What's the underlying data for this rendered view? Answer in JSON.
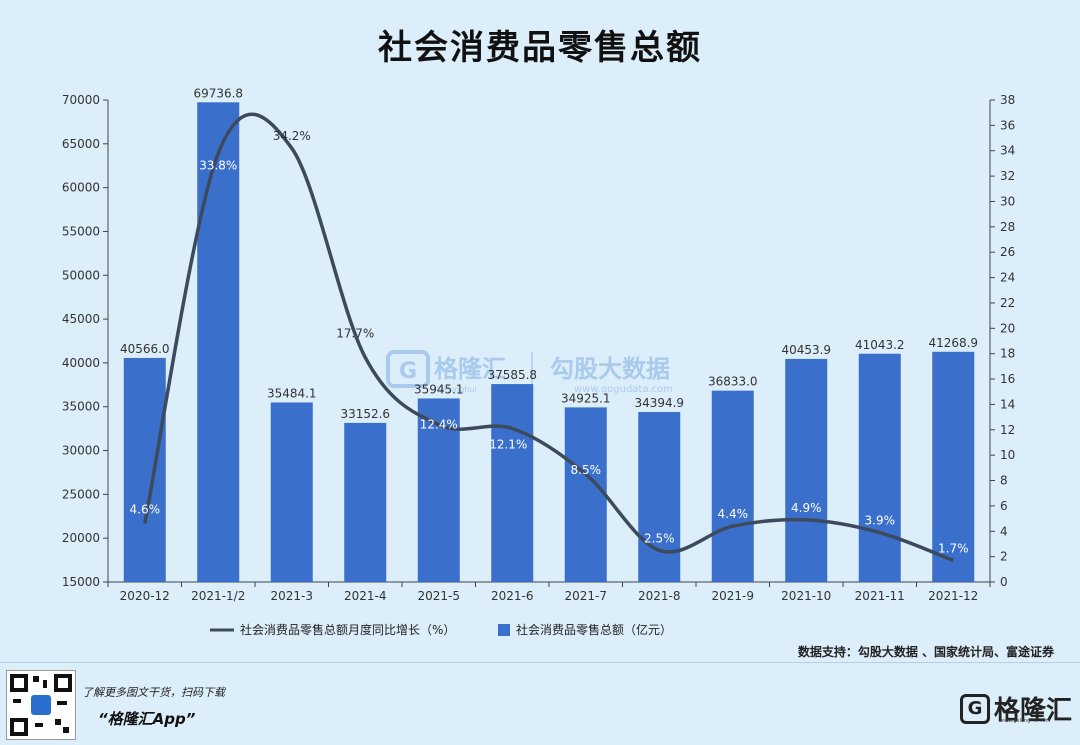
{
  "chart_data": {
    "type": "bar",
    "title": "社会消费品零售总额",
    "categories": [
      "2020-12",
      "2021-1/2",
      "2021-3",
      "2021-4",
      "2021-5",
      "2021-6",
      "2021-7",
      "2021-8",
      "2021-9",
      "2021-10",
      "2021-11",
      "2021-12"
    ],
    "series": [
      {
        "name": "社会消费品零售总额（亿元）",
        "type": "bar",
        "axis": "left",
        "color": "#3a6fcc",
        "values": [
          40566.0,
          69736.8,
          35484.1,
          33152.6,
          35945.1,
          37585.8,
          34925.1,
          34394.9,
          36833.0,
          40453.9,
          41043.2,
          41268.9
        ],
        "labels": [
          "40566.0",
          "69736.8",
          "35484.1",
          "33152.6",
          "35945.1",
          "37585.8",
          "34925.1",
          "34394.9",
          "36833.0",
          "40453.9",
          "41043.2",
          "41268.9"
        ]
      },
      {
        "name": "社会消费品零售总额月度同比增长（%）",
        "type": "line",
        "axis": "right",
        "color": "#3c4a5c",
        "smooth": true,
        "values": [
          4.6,
          33.8,
          34.2,
          17.7,
          12.4,
          12.1,
          8.5,
          2.5,
          4.4,
          4.9,
          3.9,
          1.7
        ],
        "labels": [
          "4.6%",
          "33.8%",
          "34.2%",
          "17.7%",
          "12.4%",
          "12.1%",
          "8.5%",
          "2.5%",
          "4.4%",
          "4.9%",
          "3.9%",
          "1.7%"
        ]
      }
    ],
    "y_left": {
      "min": 15000,
      "max": 70000,
      "ticks": [
        15000,
        20000,
        25000,
        30000,
        35000,
        40000,
        45000,
        50000,
        55000,
        60000,
        65000,
        70000
      ]
    },
    "y_right": {
      "min": 0,
      "max": 38,
      "ticks": [
        0,
        2,
        4,
        6,
        8,
        10,
        12,
        14,
        16,
        18,
        20,
        22,
        24,
        26,
        28,
        30,
        32,
        34,
        36,
        38
      ]
    },
    "grid": false,
    "legend_position": "bottom"
  },
  "watermark": {
    "brand": "格隆汇",
    "brand_en": "Gelonghui",
    "data": "勾股大数据",
    "url": "www.gogudata.com"
  },
  "source_text": "数据支持：勾股大数据 、国家统计局、富途证券",
  "footer": {
    "tagline": "了解更多图文干货，扫码下载",
    "app": "“格隆汇App”",
    "logo_text": "格隆汇",
    "logo_url": "www.gelonghui.com"
  }
}
